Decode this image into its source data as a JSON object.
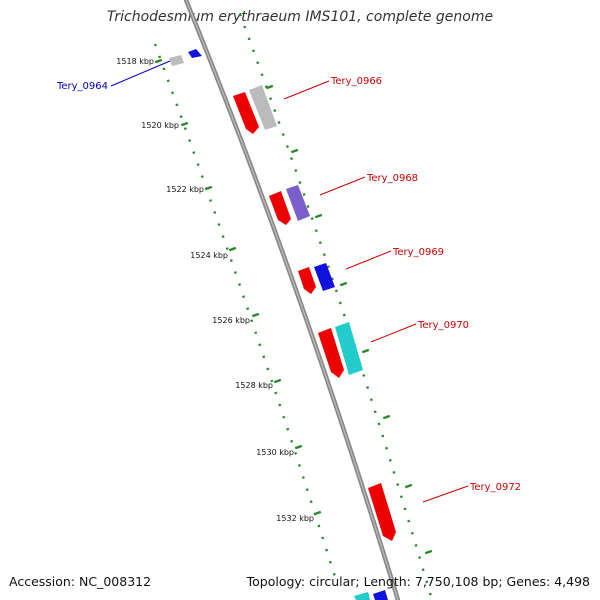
{
  "title": "Trichodesmium erythraeum IMS101, complete genome",
  "accession": "Accession: NC_008312",
  "summary": "Topology: circular; Length: 7,750,108 bp; Genes: 4,498",
  "colors": {
    "backbone": "#888888",
    "tick": "#2a8a2a",
    "forward_red": "#ee0000",
    "label_red": "#cc0000",
    "label_blue": "#0000bb",
    "gray": "#bbbbbb",
    "blue": "#1111dd",
    "purple": "#7a5fcc",
    "cyan": "#22cccc"
  },
  "scale_labels": [
    "1518 kbp",
    "1520 kbp",
    "1522 kbp",
    "1524 kbp",
    "1526 kbp",
    "1528 kbp",
    "1530 kbp",
    "1532 kbp"
  ],
  "gene_labels": [
    {
      "name": "Tery_0964",
      "color": "#0000bb"
    },
    {
      "name": "Tery_0966",
      "color": "#cc0000"
    },
    {
      "name": "Tery_0968",
      "color": "#cc0000"
    },
    {
      "name": "Tery_0969",
      "color": "#cc0000"
    },
    {
      "name": "Tery_0970",
      "color": "#cc0000"
    },
    {
      "name": "Tery_0972",
      "color": "#cc0000"
    }
  ]
}
